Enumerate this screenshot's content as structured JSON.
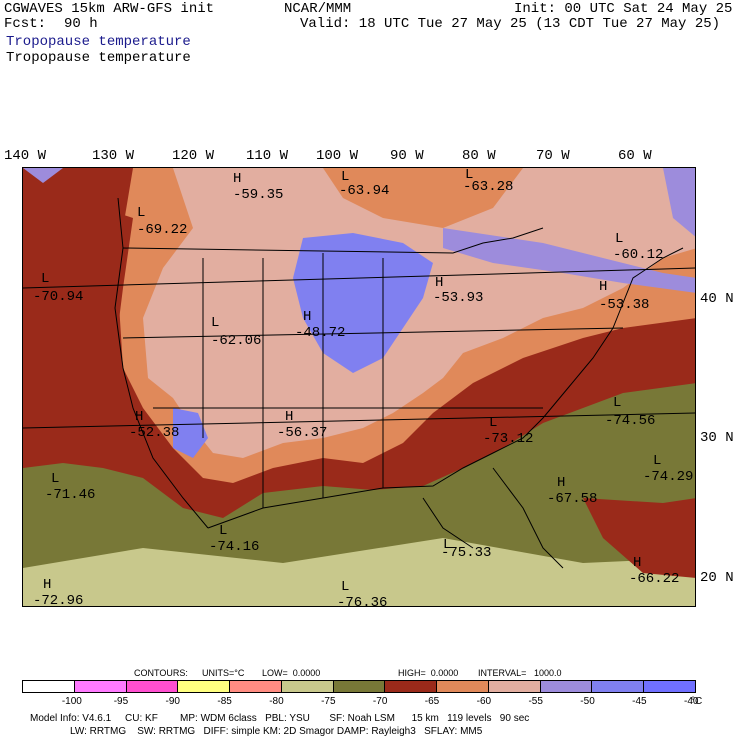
{
  "header": {
    "model": "CGWAVES 15km ARW-GFS init",
    "org": "NCAR/MMM",
    "init": "Init: 00 UTC Sat 24 May 25",
    "fcst_label": "Fcst:",
    "fcst_value": "90 h",
    "valid": "Valid: 18 UTC Tue 27 May 25 (13 CDT Tue 27 May 25)",
    "title_colored": "Tropopause temperature",
    "title": "Tropopause temperature"
  },
  "axes": {
    "lon": [
      "140 W",
      "130 W",
      "120 W",
      "110 W",
      "100 W",
      "90 W",
      "80 W",
      "70 W",
      "60 W"
    ],
    "lat": [
      "40 N",
      "30 N",
      "20 N"
    ]
  },
  "map_labels": [
    {
      "type": "H",
      "value": "-59.35"
    },
    {
      "type": "L",
      "value": "-63.94"
    },
    {
      "type": "L",
      "value": "-63.28"
    },
    {
      "type": "L",
      "value": "-69.22"
    },
    {
      "type": "L",
      "value": "-60.12"
    },
    {
      "type": "L",
      "value": "-70.94"
    },
    {
      "type": "H",
      "value": "-53.93"
    },
    {
      "type": "H",
      "value": "-53.38"
    },
    {
      "type": "L",
      "value": "-62.06"
    },
    {
      "type": "H",
      "value": "-48.72"
    },
    {
      "type": "H",
      "value": "-52.38"
    },
    {
      "type": "H",
      "value": "-56.37"
    },
    {
      "type": "L",
      "value": "-73.12"
    },
    {
      "type": "L",
      "value": "-74.56"
    },
    {
      "type": "L",
      "value": "-74.29"
    },
    {
      "type": "L",
      "value": "-71.46"
    },
    {
      "type": "H",
      "value": "-67.58"
    },
    {
      "type": "L",
      "value": "-74.16"
    },
    {
      "type": "L",
      "value": "-75.33"
    },
    {
      "type": "H",
      "value": "-66.22"
    },
    {
      "type": "H",
      "value": "-72.96"
    },
    {
      "type": "L",
      "value": "-76.36"
    }
  ],
  "contours": {
    "label": "CONTOURS:",
    "units": "UNITS=°C",
    "low": "LOW=  0.0000",
    "high": "HIGH=  0.0000",
    "interval": "INTERVAL=   1000.0"
  },
  "colorbar": {
    "colors": [
      "#ffffff",
      "#ff7aff",
      "#ff4fd0",
      "#ffff80",
      "#ff8c82",
      "#c8c88c",
      "#787837",
      "#9a2a1a",
      "#e0895a",
      "#e2aea0",
      "#9d8cdc",
      "#8080f0",
      "#7070ff"
    ],
    "ticks": [
      "-100",
      "-95",
      "-90",
      "-85",
      "-80",
      "-75",
      "-70",
      "-65",
      "-60",
      "-55",
      "-50",
      "-45",
      "-40"
    ],
    "unit": "°C"
  },
  "footer": {
    "line1": "Model Info: V4.6.1     CU: KF        MP: WDM 6class   PBL: YSU       SF: Noah LSM      15 km   119 levels   90 sec",
    "line2": "LW: RRTMG    SW: RRTMG   DIFF: simple KM: 2D Smagor DAMP: Rayleigh3   SFLAY: MM5"
  }
}
